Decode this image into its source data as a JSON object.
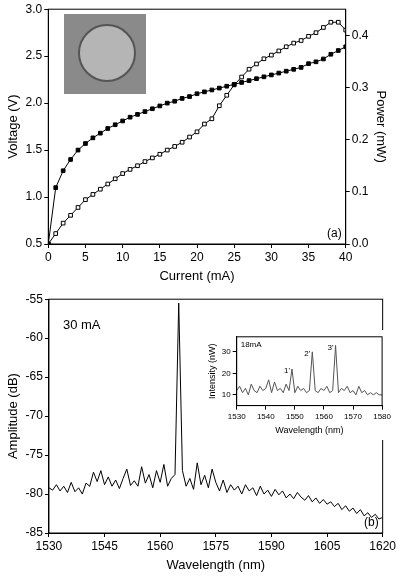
{
  "chart_data": [
    {
      "type": "line",
      "panel_label": "(a)",
      "x_label": "Current (mA)",
      "y_label": "Voltage (V)",
      "y2_label": "Power (mW)",
      "xlim": [
        0,
        40
      ],
      "xticks": [
        0,
        5,
        10,
        15,
        20,
        25,
        30,
        35,
        40
      ],
      "ylim": [
        0.5,
        3.0
      ],
      "yticks": [
        0.5,
        {
          "value": 1,
          "label": "1.0"
        },
        1.5,
        {
          "value": 2,
          "label": "2.0"
        },
        2.5,
        {
          "value": 3,
          "label": "3.0"
        }
      ],
      "y2lim": [
        0,
        0.45
      ],
      "y2ticks": [
        {
          "value": 0,
          "label": "0.0"
        },
        0.1,
        0.2,
        0.3,
        0.4
      ],
      "grid": false,
      "x": [
        0,
        1,
        2,
        3,
        4,
        5,
        6,
        7,
        8,
        9,
        10,
        11,
        12,
        13,
        14,
        15,
        16,
        17,
        18,
        19,
        20,
        21,
        22,
        23,
        24,
        25,
        26,
        27,
        28,
        29,
        30,
        31,
        32,
        33,
        34,
        35,
        36,
        37,
        38,
        39,
        40
      ],
      "series": [
        {
          "color": "#000000",
          "marker": "square",
          "line_style": "solid",
          "values": [
            0.5,
            1.1,
            1.28,
            1.4,
            1.5,
            1.57,
            1.63,
            1.68,
            1.73,
            1.77,
            1.81,
            1.85,
            1.88,
            1.91,
            1.94,
            1.97,
            2.0,
            2.02,
            2.05,
            2.07,
            2.1,
            2.12,
            2.14,
            2.16,
            2.18,
            2.2,
            2.22,
            2.24,
            2.26,
            2.28,
            2.3,
            2.32,
            2.34,
            2.36,
            2.38,
            2.42,
            2.44,
            2.47,
            2.52,
            2.56,
            2.6
          ]
        },
        {
          "color": "#000000",
          "marker": "open_square",
          "line_style": "solid",
          "axis": "y2",
          "values": [
            0,
            0.02,
            0.04,
            0.055,
            0.07,
            0.085,
            0.095,
            0.105,
            0.115,
            0.125,
            0.135,
            0.143,
            0.15,
            0.158,
            0.165,
            0.172,
            0.18,
            0.187,
            0.195,
            0.205,
            0.215,
            0.23,
            0.24,
            0.265,
            0.285,
            0.305,
            0.32,
            0.335,
            0.345,
            0.355,
            0.362,
            0.37,
            0.378,
            0.385,
            0.39,
            0.398,
            0.405,
            0.415,
            0.425,
            0.425,
            0.41
          ]
        }
      ]
    },
    {
      "type": "line",
      "panel_label": "(b)",
      "note": "30 mA",
      "x_label": "Wavelength (nm)",
      "y_label": "Amplitude (dB)",
      "xlim": [
        1530,
        1620
      ],
      "xticks": [
        1530,
        1545,
        1560,
        1575,
        1590,
        1605,
        1620
      ],
      "ylim": [
        -85,
        -55
      ],
      "yticks": [
        -85,
        -80,
        -75,
        -70,
        -65,
        -60,
        -55
      ],
      "grid": false,
      "x": [
        1530,
        1531,
        1532,
        1533,
        1534,
        1535,
        1536,
        1537,
        1538,
        1539,
        1540,
        1541,
        1542,
        1543,
        1544,
        1545,
        1546,
        1547,
        1548,
        1549,
        1550,
        1551,
        1552,
        1553,
        1554,
        1555,
        1556,
        1557,
        1558,
        1559,
        1560,
        1561,
        1562,
        1563,
        1564,
        1565,
        1566,
        1567,
        1568,
        1569,
        1570,
        1571,
        1572,
        1573,
        1574,
        1575,
        1576,
        1577,
        1578,
        1579,
        1580,
        1581,
        1582,
        1583,
        1584,
        1585,
        1586,
        1587,
        1588,
        1589,
        1590,
        1591,
        1592,
        1593,
        1594,
        1595,
        1596,
        1597,
        1598,
        1599,
        1600,
        1601,
        1602,
        1603,
        1604,
        1605,
        1606,
        1607,
        1608,
        1609,
        1610,
        1611,
        1612,
        1613,
        1614,
        1615,
        1616,
        1617,
        1618,
        1619,
        1620
      ],
      "series": [
        {
          "color": "#000000",
          "marker": "none",
          "line_style": "solid",
          "values": [
            -79.2,
            -79.5,
            -78.8,
            -79.6,
            -79.0,
            -79.8,
            -78.5,
            -79.7,
            -79.2,
            -80.0,
            -78.6,
            -79.0,
            -77.2,
            -78.4,
            -77.0,
            -78.8,
            -77.8,
            -79.0,
            -78.2,
            -79.3,
            -78.0,
            -76.8,
            -78.9,
            -78.3,
            -79.0,
            -76.5,
            -78.6,
            -77.5,
            -79.2,
            -77.0,
            -78.5,
            -76.2,
            -79.0,
            -78.0,
            -77.5,
            -55.5,
            -77.0,
            -79.0,
            -78.0,
            -79.4,
            -76.0,
            -78.8,
            -77.6,
            -79.2,
            -76.8,
            -78.5,
            -79.6,
            -78.2,
            -79.8,
            -78.8,
            -79.5,
            -79.0,
            -80.0,
            -78.8,
            -79.6,
            -79.2,
            -80.2,
            -79.0,
            -80.0,
            -79.5,
            -80.3,
            -79.4,
            -80.1,
            -79.6,
            -80.5,
            -80.0,
            -80.6,
            -79.8,
            -80.4,
            -80.8,
            -80.2,
            -81.0,
            -80.5,
            -81.2,
            -80.7,
            -81.3,
            -81.0,
            -81.6,
            -81.2,
            -82.0,
            -81.5,
            -82.2,
            -81.8,
            -82.5,
            -82.0,
            -82.8,
            -82.4,
            -83.0,
            -82.6,
            -83.2,
            -83.0
          ]
        }
      ]
    },
    {
      "type": "line",
      "note": "18mA",
      "x_label": "Wavelength (nm)",
      "y_label": "Intensity (nW)",
      "xlim": [
        1530,
        1580
      ],
      "xticks": [
        1530,
        1540,
        1550,
        1560,
        1570,
        1580
      ],
      "ylim": [
        5,
        37
      ],
      "yticks": [
        10,
        20,
        30
      ],
      "grid": false,
      "x": [
        1530,
        1531,
        1532,
        1533,
        1534,
        1535,
        1536,
        1537,
        1538,
        1539,
        1540,
        1541,
        1542,
        1543,
        1544,
        1545,
        1546,
        1547,
        1548,
        1549,
        1550,
        1551,
        1552,
        1553,
        1554,
        1555,
        1556,
        1557,
        1558,
        1559,
        1560,
        1561,
        1562,
        1563,
        1564,
        1565,
        1566,
        1567,
        1568,
        1569,
        1570,
        1571,
        1572,
        1573,
        1574,
        1575,
        1576,
        1577,
        1578,
        1579,
        1580
      ],
      "series": [
        {
          "color": "#555555",
          "marker": "none",
          "line_style": "solid",
          "values": [
            12,
            14,
            11,
            13,
            10,
            15,
            12,
            11,
            14,
            12,
            13,
            17,
            11,
            16,
            12,
            13,
            11,
            15,
            12,
            22,
            11,
            14,
            12,
            13,
            11,
            12,
            30,
            12,
            11,
            13,
            12,
            14,
            11,
            12,
            33,
            11,
            13,
            12,
            14,
            11,
            12,
            10,
            14,
            11,
            12,
            10,
            11,
            10,
            11,
            10,
            10
          ]
        }
      ],
      "peak_labels": [
        {
          "text": "1'",
          "x": 1549
        },
        {
          "text": "2'",
          "x": 1556
        },
        {
          "text": "3'",
          "x": 1564
        }
      ]
    }
  ]
}
